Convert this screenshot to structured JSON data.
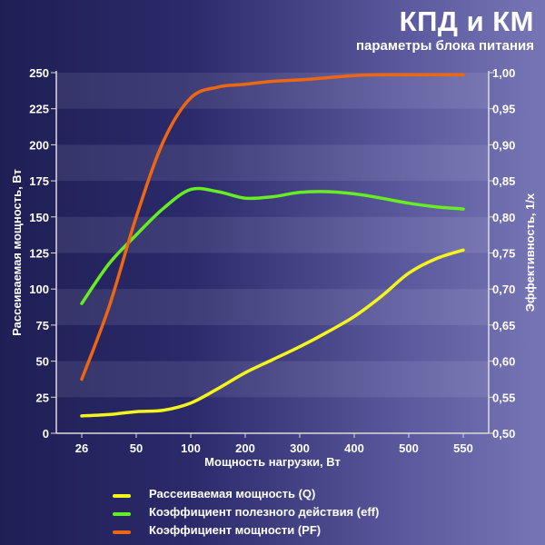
{
  "header": {
    "title": "КПД и КМ",
    "subtitle": "параметры блока питания"
  },
  "colors": {
    "q": "#f5f51e",
    "eff": "#66ee22",
    "pf": "#ee6611",
    "axis": "#dcdcdc",
    "band": "#ffffff"
  },
  "chart_data": {
    "type": "line",
    "xlabel": "Мощность нагрузки, Вт",
    "ylabel_left": "Рассеиваемая мощность, Вт",
    "ylabel_right": "Эффективность, 1/x",
    "categories": [
      "26",
      "50",
      "100",
      "200",
      "300",
      "400",
      "500",
      "550"
    ],
    "y_left": {
      "range": [
        0,
        250
      ],
      "ticks": [
        "0",
        "25",
        "50",
        "75",
        "100",
        "125",
        "150",
        "175",
        "200",
        "225",
        "250"
      ]
    },
    "y_right": {
      "range": [
        0.5,
        1.0
      ],
      "ticks": [
        "0,50",
        "0,55",
        "0,60",
        "0,65",
        "0,70",
        "0,75",
        "0,80",
        "0,85",
        "0,90",
        "0,95",
        "1,00"
      ]
    },
    "series": [
      {
        "name": "Рассеиваемая мощность (Q)",
        "axis": "left",
        "color": "#f5f51e",
        "x": [
          0,
          0.5,
          1,
          1.5,
          2,
          2.5,
          3,
          3.5,
          4,
          4.5,
          5,
          5.5,
          6,
          6.5,
          7
        ],
        "values": [
          12,
          13,
          15,
          16,
          21,
          31,
          42,
          51,
          60,
          70,
          81,
          95,
          111,
          121,
          127
        ]
      },
      {
        "name": "Коэффициент полезного действия (eff)",
        "axis": "right",
        "color": "#66ee22",
        "x": [
          0,
          0.5,
          1,
          1.5,
          2,
          2.5,
          3,
          3.5,
          4,
          4.5,
          5,
          5.5,
          6,
          6.5,
          7
        ],
        "values": [
          0.68,
          0.735,
          0.775,
          0.812,
          0.838,
          0.835,
          0.826,
          0.828,
          0.834,
          0.835,
          0.832,
          0.826,
          0.819,
          0.814,
          0.811
        ]
      },
      {
        "name": "Коэффициент мощности (PF)",
        "axis": "right",
        "color": "#ee6611",
        "x": [
          0,
          0.5,
          1,
          1.5,
          2,
          2.5,
          3,
          3.5,
          4,
          4.5,
          5,
          5.5,
          6,
          6.5,
          7
        ],
        "values": [
          0.575,
          0.675,
          0.8,
          0.905,
          0.965,
          0.98,
          0.984,
          0.988,
          0.99,
          0.993,
          0.996,
          0.997,
          0.997,
          0.997,
          0.997
        ]
      }
    ],
    "grid": "horizontal bands",
    "legend_position": "bottom"
  }
}
